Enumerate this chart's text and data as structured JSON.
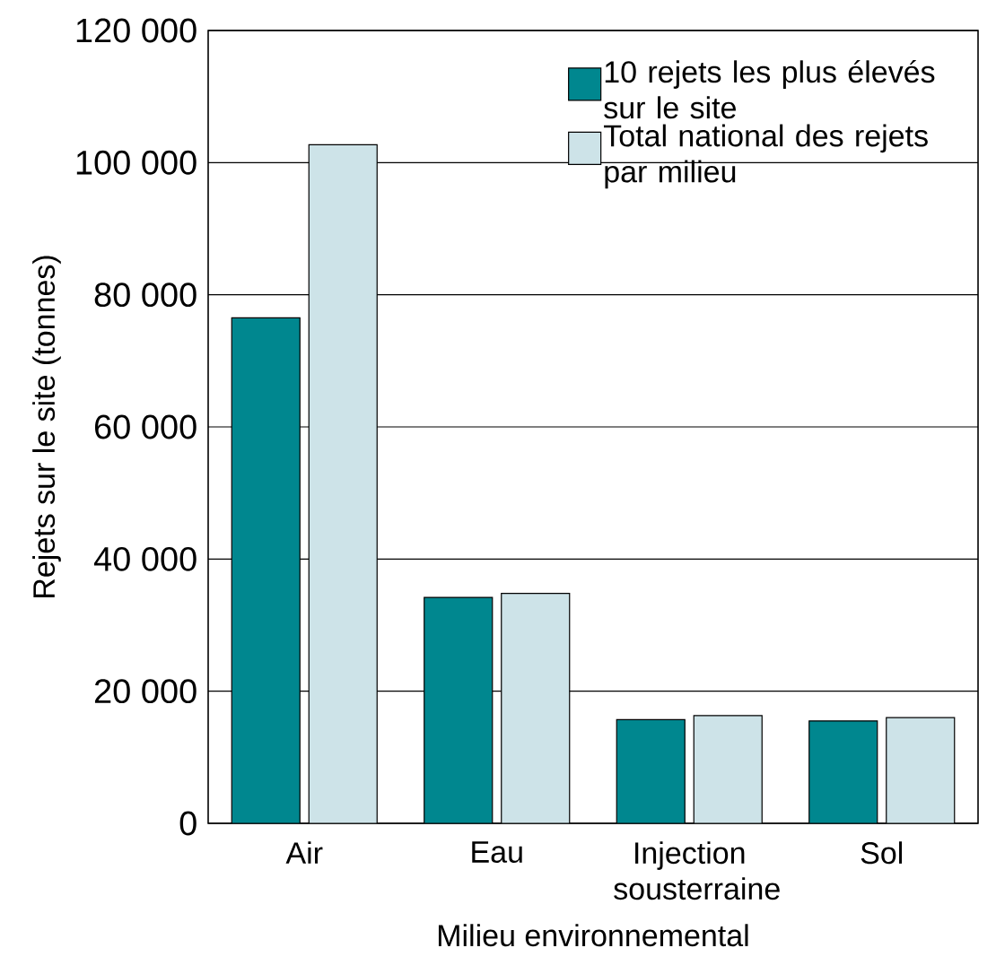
{
  "chart_data": {
    "type": "bar",
    "xlabel": "Milieu environnemental",
    "ylabel": "Rejets sur le site (tonnes)",
    "categories": [
      "Air",
      "Eau",
      "Injection sousterraine",
      "Sol"
    ],
    "series": [
      {
        "name": "10 rejets les plus élevés sur le site",
        "color": "#00878f",
        "values": [
          76500,
          34200,
          15700,
          15500
        ]
      },
      {
        "name": "Total national des rejets par milieu",
        "color": "#cde3e8",
        "values": [
          102700,
          34800,
          16300,
          16000
        ]
      }
    ],
    "ylim": [
      0,
      120000
    ],
    "yticks": [
      0,
      {
        "value": 20000,
        "label": "20 000"
      },
      {
        "value": 40000,
        "label": "40 000"
      },
      {
        "value": 60000,
        "label": "60 000"
      },
      {
        "value": 80000,
        "label": "80 000"
      },
      {
        "value": 100000,
        "label": "100 000"
      },
      {
        "value": 120000,
        "label": "120 000"
      }
    ],
    "grid": "y",
    "legend": "top right"
  }
}
